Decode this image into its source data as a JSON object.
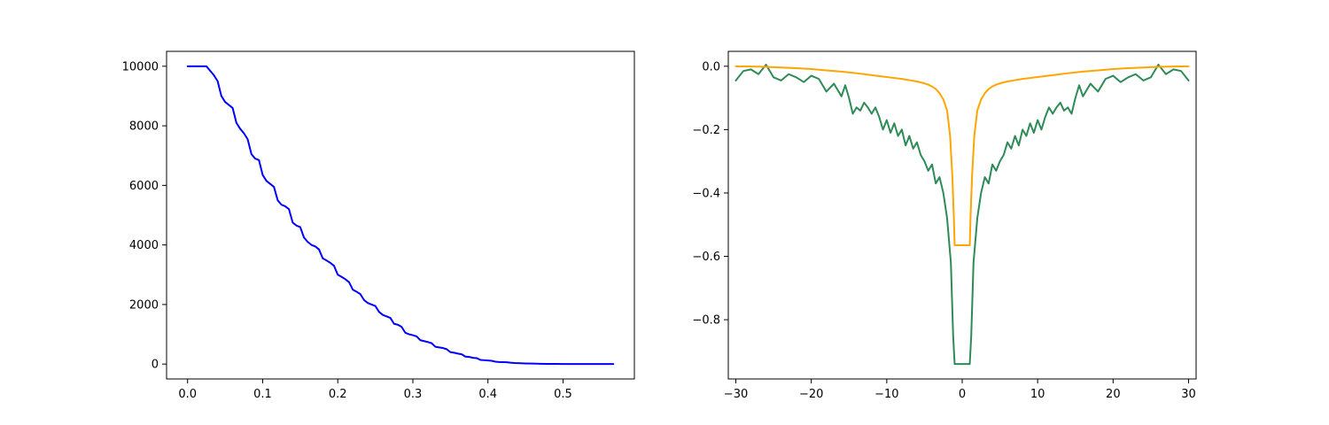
{
  "chart_data": [
    {
      "type": "line",
      "title": "",
      "xlabel": "",
      "ylabel": "",
      "xlim": [
        -0.028,
        0.595
      ],
      "ylim": [
        -500,
        10500
      ],
      "xticks": [
        0.0,
        0.1,
        0.2,
        0.3,
        0.4,
        0.5
      ],
      "xtick_labels": [
        "0.0",
        "0.1",
        "0.2",
        "0.3",
        "0.4",
        "0.5"
      ],
      "yticks": [
        0,
        2000,
        4000,
        6000,
        8000,
        10000
      ],
      "ytick_labels": [
        "0",
        "2000",
        "4000",
        "6000",
        "8000",
        "10000"
      ],
      "grid": false,
      "series": [
        {
          "color": "#0000ff",
          "x": [
            0.0,
            0.01,
            0.02,
            0.025,
            0.03,
            0.035,
            0.04,
            0.045,
            0.05,
            0.055,
            0.06,
            0.065,
            0.07,
            0.075,
            0.08,
            0.085,
            0.09,
            0.095,
            0.1,
            0.105,
            0.11,
            0.115,
            0.12,
            0.125,
            0.13,
            0.135,
            0.14,
            0.145,
            0.15,
            0.155,
            0.16,
            0.165,
            0.17,
            0.175,
            0.18,
            0.185,
            0.19,
            0.195,
            0.2,
            0.205,
            0.21,
            0.215,
            0.22,
            0.225,
            0.23,
            0.235,
            0.24,
            0.245,
            0.25,
            0.255,
            0.26,
            0.265,
            0.27,
            0.275,
            0.28,
            0.285,
            0.29,
            0.295,
            0.3,
            0.305,
            0.31,
            0.315,
            0.32,
            0.325,
            0.33,
            0.335,
            0.34,
            0.345,
            0.35,
            0.355,
            0.36,
            0.365,
            0.37,
            0.375,
            0.38,
            0.385,
            0.39,
            0.395,
            0.4,
            0.405,
            0.41,
            0.415,
            0.42,
            0.425,
            0.43,
            0.435,
            0.44,
            0.45,
            0.46,
            0.47,
            0.48,
            0.49,
            0.5,
            0.52,
            0.54,
            0.567
          ],
          "y": [
            10000,
            10000,
            10000,
            10000,
            9850,
            9700,
            9500,
            9000,
            8800,
            8700,
            8600,
            8100,
            7900,
            7750,
            7550,
            7050,
            6900,
            6850,
            6350,
            6150,
            6050,
            5950,
            5500,
            5350,
            5300,
            5200,
            4750,
            4650,
            4600,
            4250,
            4100,
            4000,
            3950,
            3850,
            3550,
            3480,
            3400,
            3300,
            3000,
            2930,
            2850,
            2750,
            2500,
            2430,
            2350,
            2150,
            2050,
            2000,
            1950,
            1750,
            1650,
            1600,
            1550,
            1350,
            1320,
            1250,
            1050,
            1000,
            970,
            930,
            800,
            770,
            740,
            700,
            580,
            560,
            540,
            500,
            400,
            380,
            350,
            330,
            250,
            240,
            210,
            200,
            140,
            130,
            120,
            110,
            80,
            70,
            65,
            60,
            45,
            35,
            30,
            22,
            15,
            10,
            6,
            4,
            2,
            0,
            0,
            0
          ]
        }
      ]
    },
    {
      "type": "line",
      "title": "",
      "xlabel": "",
      "ylabel": "",
      "xlim": [
        -3.1,
        3.1
      ],
      "ylim": [
        -0.987,
        0.047
      ],
      "xticks": [
        -3.0,
        -2.0,
        -1.0,
        0.0,
        1.0,
        2.0,
        3.0
      ],
      "xtick_labels": [
        "−30",
        "−20",
        "−10",
        "0",
        "10",
        "20",
        "30"
      ],
      "yticks": [
        0.0,
        -0.2,
        -0.4,
        -0.6,
        -0.8
      ],
      "ytick_labels": [
        "0.0",
        "−0.2",
        "−0.4",
        "−0.6",
        "−0.8"
      ],
      "grid": false,
      "series": [
        {
          "color": "#2e8b57",
          "x": [
            -3.0,
            -2.9,
            -2.8,
            -2.7,
            -2.6,
            -2.5,
            -2.4,
            -2.3,
            -2.2,
            -2.1,
            -2.0,
            -1.9,
            -1.8,
            -1.7,
            -1.6,
            -1.55,
            -1.5,
            -1.45,
            -1.4,
            -1.35,
            -1.3,
            -1.25,
            -1.2,
            -1.15,
            -1.1,
            -1.05,
            -1.0,
            -0.95,
            -0.9,
            -0.85,
            -0.8,
            -0.75,
            -0.7,
            -0.65,
            -0.6,
            -0.55,
            -0.5,
            -0.45,
            -0.4,
            -0.35,
            -0.3,
            -0.25,
            -0.2,
            -0.15,
            -0.12,
            -0.1,
            -0.08,
            0.08,
            0.1,
            0.12,
            0.15,
            0.2,
            0.25,
            0.3,
            0.35,
            0.4,
            0.45,
            0.5,
            0.55,
            0.6,
            0.65,
            0.7,
            0.75,
            0.8,
            0.85,
            0.9,
            0.95,
            1.0,
            1.05,
            1.1,
            1.15,
            1.2,
            1.25,
            1.3,
            1.35,
            1.4,
            1.45,
            1.5,
            1.55,
            1.6,
            1.7,
            1.8,
            1.9,
            2.0,
            2.1,
            2.2,
            2.3,
            2.4,
            2.5,
            2.6,
            2.7,
            2.8,
            2.9,
            3.0
          ],
          "y": [
            -0.045,
            -0.015,
            -0.01,
            -0.025,
            0.005,
            -0.035,
            -0.045,
            -0.025,
            -0.035,
            -0.05,
            -0.03,
            -0.04,
            -0.08,
            -0.055,
            -0.095,
            -0.06,
            -0.1,
            -0.15,
            -0.13,
            -0.14,
            -0.115,
            -0.13,
            -0.15,
            -0.13,
            -0.16,
            -0.2,
            -0.17,
            -0.21,
            -0.18,
            -0.22,
            -0.2,
            -0.25,
            -0.22,
            -0.26,
            -0.24,
            -0.28,
            -0.3,
            -0.33,
            -0.31,
            -0.37,
            -0.35,
            -0.4,
            -0.48,
            -0.62,
            -0.85,
            -0.94,
            -0.94,
            -0.94,
            -0.94,
            -0.85,
            -0.62,
            -0.48,
            -0.4,
            -0.35,
            -0.37,
            -0.31,
            -0.33,
            -0.3,
            -0.28,
            -0.24,
            -0.26,
            -0.22,
            -0.25,
            -0.2,
            -0.22,
            -0.18,
            -0.21,
            -0.17,
            -0.2,
            -0.16,
            -0.13,
            -0.15,
            -0.13,
            -0.115,
            -0.14,
            -0.13,
            -0.15,
            -0.1,
            -0.06,
            -0.095,
            -0.055,
            -0.08,
            -0.04,
            -0.03,
            -0.05,
            -0.035,
            -0.025,
            -0.045,
            -0.035,
            0.005,
            -0.025,
            -0.01,
            -0.015,
            -0.045
          ]
        },
        {
          "color": "#ffa500",
          "x": [
            -3.0,
            -2.8,
            -2.6,
            -2.4,
            -2.2,
            -2.0,
            -1.8,
            -1.6,
            -1.4,
            -1.2,
            -1.0,
            -0.9,
            -0.8,
            -0.7,
            -0.6,
            -0.5,
            -0.45,
            -0.4,
            -0.35,
            -0.3,
            -0.25,
            -0.2,
            -0.16,
            -0.13,
            -0.11,
            -0.1,
            0.1,
            0.11,
            0.13,
            0.16,
            0.2,
            0.25,
            0.3,
            0.35,
            0.4,
            0.45,
            0.5,
            0.6,
            0.7,
            0.8,
            0.9,
            1.0,
            1.2,
            1.4,
            1.6,
            1.8,
            2.0,
            2.2,
            2.4,
            2.6,
            2.8,
            3.0
          ],
          "y": [
            0.0,
            -0.001,
            -0.002,
            -0.004,
            -0.006,
            -0.009,
            -0.013,
            -0.017,
            -0.022,
            -0.028,
            -0.034,
            -0.037,
            -0.04,
            -0.044,
            -0.048,
            -0.054,
            -0.058,
            -0.064,
            -0.072,
            -0.085,
            -0.105,
            -0.14,
            -0.22,
            -0.35,
            -0.48,
            -0.565,
            -0.565,
            -0.48,
            -0.35,
            -0.22,
            -0.14,
            -0.105,
            -0.085,
            -0.072,
            -0.064,
            -0.058,
            -0.054,
            -0.048,
            -0.044,
            -0.04,
            -0.037,
            -0.034,
            -0.028,
            -0.022,
            -0.017,
            -0.013,
            -0.009,
            -0.006,
            -0.004,
            -0.002,
            -0.001,
            0.0
          ]
        }
      ]
    }
  ]
}
